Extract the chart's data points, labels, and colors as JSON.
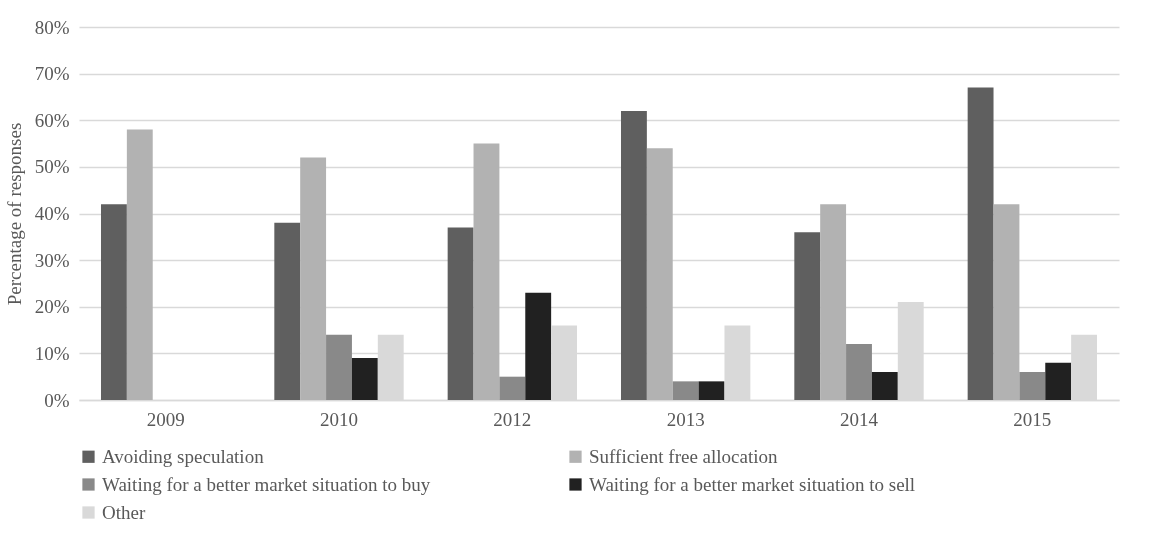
{
  "chart_data": {
    "type": "bar",
    "ylabel": "Percentage of responses",
    "categories": [
      "2009",
      "2010",
      "2012",
      "2013",
      "2014",
      "2015"
    ],
    "series": [
      {
        "name": "Avoiding speculation",
        "color": "#5f5f5f",
        "values": [
          42,
          38,
          37,
          62,
          36,
          67
        ]
      },
      {
        "name": "Sufficient free allocation",
        "color": "#b2b2b2",
        "values": [
          58,
          52,
          55,
          54,
          42,
          42
        ]
      },
      {
        "name": "Waiting for a better market situation to buy",
        "color": "#898989",
        "values": [
          null,
          14,
          5,
          4,
          12,
          6
        ]
      },
      {
        "name": "Waiting for a better market situation to sell",
        "color": "#212121",
        "values": [
          null,
          9,
          23,
          4,
          6,
          8
        ]
      },
      {
        "name": "Other",
        "color": "#d9d9d9",
        "values": [
          null,
          14,
          16,
          16,
          21,
          14
        ]
      }
    ],
    "ylim": [
      0,
      80
    ],
    "yticks": [
      {
        "value": 0,
        "label": "0%"
      },
      {
        "value": 10,
        "label": "10%"
      },
      {
        "value": 20,
        "label": "20%"
      },
      {
        "value": 30,
        "label": "30%"
      },
      {
        "value": 40,
        "label": "40%"
      },
      {
        "value": 50,
        "label": "50%"
      },
      {
        "value": 60,
        "label": "60%"
      },
      {
        "value": 70,
        "label": "70%"
      },
      {
        "value": 80,
        "label": "80%"
      }
    ],
    "grid": "y",
    "legend": "bottom"
  }
}
